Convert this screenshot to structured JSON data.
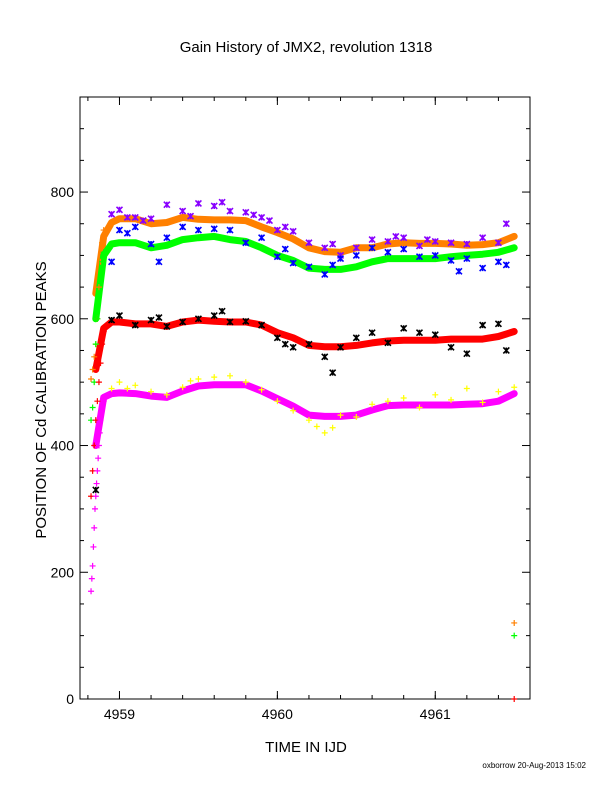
{
  "chart_data": {
    "type": "scatter",
    "title": "Gain History of JMX2, revolution 1318",
    "xlabel": "TIME IN IJD",
    "ylabel": "POSITION OF Cd CALIBRATION PEAKS",
    "footer": "oxborrow 20-Aug-2013 15:02",
    "xlim": [
      4958.75,
      4961.6
    ],
    "ylim": [
      0,
      950
    ],
    "xticks": [
      4959,
      4960,
      4961
    ],
    "yticks": [
      0,
      200,
      400,
      600,
      800
    ],
    "grid": false,
    "series": [
      {
        "color": "#ff8000",
        "marker": "line",
        "x": [
          4958.85,
          4958.9,
          4958.95,
          4959.0,
          4959.1,
          4959.2,
          4959.3,
          4959.4,
          4959.5,
          4959.6,
          4959.7,
          4959.8,
          4959.9,
          4960.0,
          4960.1,
          4960.2,
          4960.3,
          4960.4,
          4960.5,
          4960.6,
          4960.7,
          4960.8,
          4960.9,
          4961.0,
          4961.1,
          4961.2,
          4961.3,
          4961.4,
          4961.5
        ],
        "y": [
          640,
          730,
          752,
          758,
          758,
          750,
          752,
          760,
          757,
          756,
          756,
          755,
          745,
          736,
          726,
          712,
          706,
          705,
          712,
          712,
          718,
          720,
          719,
          719,
          718,
          716,
          717,
          720,
          730
        ]
      },
      {
        "color": "#00ff00",
        "marker": "line",
        "x": [
          4958.85,
          4958.9,
          4958.95,
          4959.0,
          4959.1,
          4959.2,
          4959.3,
          4959.4,
          4959.5,
          4959.6,
          4959.7,
          4959.8,
          4959.9,
          4960.0,
          4960.1,
          4960.2,
          4960.3,
          4960.4,
          4960.5,
          4960.6,
          4960.7,
          4960.8,
          4960.9,
          4961.0,
          4961.1,
          4961.2,
          4961.3,
          4961.4,
          4961.5
        ],
        "y": [
          600,
          700,
          718,
          720,
          720,
          712,
          716,
          725,
          728,
          730,
          725,
          722,
          712,
          700,
          692,
          680,
          678,
          678,
          682,
          690,
          695,
          695,
          695,
          695,
          698,
          700,
          702,
          705,
          712
        ]
      },
      {
        "color": "#ff0000",
        "marker": "line",
        "x": [
          4958.85,
          4958.9,
          4958.95,
          4959.0,
          4959.1,
          4959.2,
          4959.3,
          4959.4,
          4959.5,
          4959.6,
          4959.7,
          4959.8,
          4959.9,
          4960.0,
          4960.1,
          4960.2,
          4960.3,
          4960.4,
          4960.5,
          4960.6,
          4960.7,
          4960.8,
          4960.9,
          4961.0,
          4961.1,
          4961.2,
          4961.3,
          4961.4,
          4961.5
        ],
        "y": [
          520,
          585,
          595,
          595,
          592,
          592,
          588,
          595,
          598,
          596,
          595,
          595,
          590,
          578,
          570,
          558,
          556,
          556,
          558,
          562,
          565,
          566,
          566,
          566,
          568,
          568,
          568,
          572,
          580
        ]
      },
      {
        "color": "#ff00ff",
        "marker": "line",
        "x": [
          4958.85,
          4958.9,
          4958.95,
          4959.0,
          4959.1,
          4959.2,
          4959.3,
          4959.4,
          4959.5,
          4959.6,
          4959.7,
          4959.8,
          4959.9,
          4960.0,
          4960.1,
          4960.2,
          4960.3,
          4960.4,
          4960.5,
          4960.6,
          4960.7,
          4960.8,
          4960.9,
          4961.0,
          4961.1,
          4961.2,
          4961.3,
          4961.4,
          4961.5
        ],
        "y": [
          400,
          476,
          482,
          483,
          482,
          478,
          476,
          486,
          494,
          496,
          496,
          496,
          486,
          474,
          462,
          448,
          446,
          446,
          448,
          456,
          463,
          464,
          464,
          464,
          464,
          465,
          466,
          470,
          482
        ]
      },
      {
        "color": "#8800ff",
        "marker": "star",
        "x": [
          4958.95,
          4959.0,
          4959.05,
          4959.1,
          4959.15,
          4959.2,
          4959.3,
          4959.4,
          4959.45,
          4959.5,
          4959.6,
          4959.65,
          4959.7,
          4959.8,
          4959.85,
          4959.9,
          4959.95,
          4960.0,
          4960.05,
          4960.1,
          4960.2,
          4960.3,
          4960.35,
          4960.4,
          4960.5,
          4960.6,
          4960.7,
          4960.75,
          4960.8,
          4960.9,
          4960.95,
          4961.0,
          4961.1,
          4961.2,
          4961.3,
          4961.4,
          4961.45
        ],
        "y": [
          765,
          772,
          760,
          760,
          755,
          758,
          780,
          770,
          762,
          782,
          778,
          784,
          770,
          768,
          764,
          760,
          755,
          740,
          745,
          738,
          720,
          712,
          718,
          700,
          712,
          725,
          722,
          730,
          728,
          715,
          725,
          722,
          720,
          718,
          728,
          720,
          750
        ]
      },
      {
        "color": "#0000ff",
        "marker": "star",
        "x": [
          4958.95,
          4959.0,
          4959.05,
          4959.1,
          4959.2,
          4959.25,
          4959.3,
          4959.4,
          4959.5,
          4959.6,
          4959.7,
          4959.8,
          4959.9,
          4960.0,
          4960.05,
          4960.1,
          4960.2,
          4960.3,
          4960.35,
          4960.4,
          4960.5,
          4960.6,
          4960.7,
          4960.8,
          4960.9,
          4961.0,
          4961.1,
          4961.15,
          4961.2,
          4961.3,
          4961.4,
          4961.45
        ],
        "y": [
          690,
          740,
          735,
          745,
          718,
          690,
          728,
          745,
          740,
          742,
          740,
          720,
          728,
          698,
          710,
          688,
          682,
          670,
          685,
          695,
          700,
          712,
          705,
          710,
          698,
          700,
          692,
          675,
          695,
          680,
          690,
          685
        ]
      },
      {
        "color": "#000000",
        "marker": "star",
        "x": [
          4958.85,
          4958.95,
          4959.0,
          4959.1,
          4959.2,
          4959.25,
          4959.3,
          4959.4,
          4959.5,
          4959.6,
          4959.65,
          4959.7,
          4959.8,
          4959.9,
          4960.0,
          4960.05,
          4960.1,
          4960.2,
          4960.3,
          4960.35,
          4960.4,
          4960.5,
          4960.6,
          4960.7,
          4960.8,
          4960.9,
          4961.0,
          4961.1,
          4961.2,
          4961.3,
          4961.4,
          4961.45
        ],
        "y": [
          330,
          598,
          605,
          590,
          598,
          602,
          588,
          595,
          600,
          605,
          612,
          595,
          596,
          590,
          570,
          560,
          555,
          560,
          540,
          515,
          555,
          570,
          578,
          562,
          585,
          578,
          575,
          555,
          545,
          590,
          592,
          550
        ]
      },
      {
        "color": "#ffff00",
        "marker": "plus",
        "x": [
          4958.95,
          4959.0,
          4959.05,
          4959.1,
          4959.2,
          4959.3,
          4959.4,
          4959.45,
          4959.5,
          4959.6,
          4959.7,
          4959.8,
          4959.9,
          4960.0,
          4960.1,
          4960.2,
          4960.25,
          4960.3,
          4960.35,
          4960.4,
          4960.5,
          4960.6,
          4960.7,
          4960.8,
          4960.9,
          4961.0,
          4961.1,
          4961.2,
          4961.3,
          4961.4,
          4961.5
        ],
        "y": [
          490,
          500,
          490,
          495,
          485,
          480,
          492,
          502,
          505,
          508,
          510,
          500,
          488,
          470,
          455,
          440,
          430,
          420,
          428,
          448,
          445,
          465,
          470,
          475,
          460,
          480,
          472,
          490,
          468,
          485,
          492
        ]
      },
      {
        "color": "#ff8000",
        "marker": "plus",
        "x": [
          4958.82,
          4958.83,
          4958.84,
          4958.85,
          4958.86,
          4958.87,
          4958.88,
          4958.89,
          4958.9,
          4961.5
        ],
        "y": [
          505,
          520,
          540,
          560,
          600,
          650,
          690,
          720,
          740,
          120
        ]
      },
      {
        "color": "#00ff00",
        "marker": "plus",
        "x": [
          4958.82,
          4958.83,
          4958.84,
          4958.85,
          4958.86,
          4958.87,
          4958.88,
          4958.89,
          4958.9,
          4961.5
        ],
        "y": [
          440,
          460,
          500,
          560,
          600,
          640,
          665,
          690,
          705,
          100
        ]
      },
      {
        "color": "#ff0000",
        "marker": "plus",
        "x": [
          4958.82,
          4958.83,
          4958.84,
          4958.85,
          4958.86,
          4958.87,
          4958.88,
          4958.89,
          4958.9,
          4961.5
        ],
        "y": [
          320,
          360,
          400,
          440,
          470,
          500,
          530,
          560,
          580,
          0
        ]
      },
      {
        "color": "#ff00ff",
        "marker": "plus",
        "x": [
          4958.82,
          4958.825,
          4958.83,
          4958.835,
          4958.84,
          4958.845,
          4958.85,
          4958.855,
          4958.86,
          4958.865,
          4958.87,
          4958.875,
          4958.88,
          4958.89,
          4958.9
        ],
        "y": [
          170,
          190,
          210,
          240,
          270,
          300,
          320,
          340,
          360,
          380,
          400,
          420,
          440,
          460,
          470
        ]
      }
    ]
  }
}
